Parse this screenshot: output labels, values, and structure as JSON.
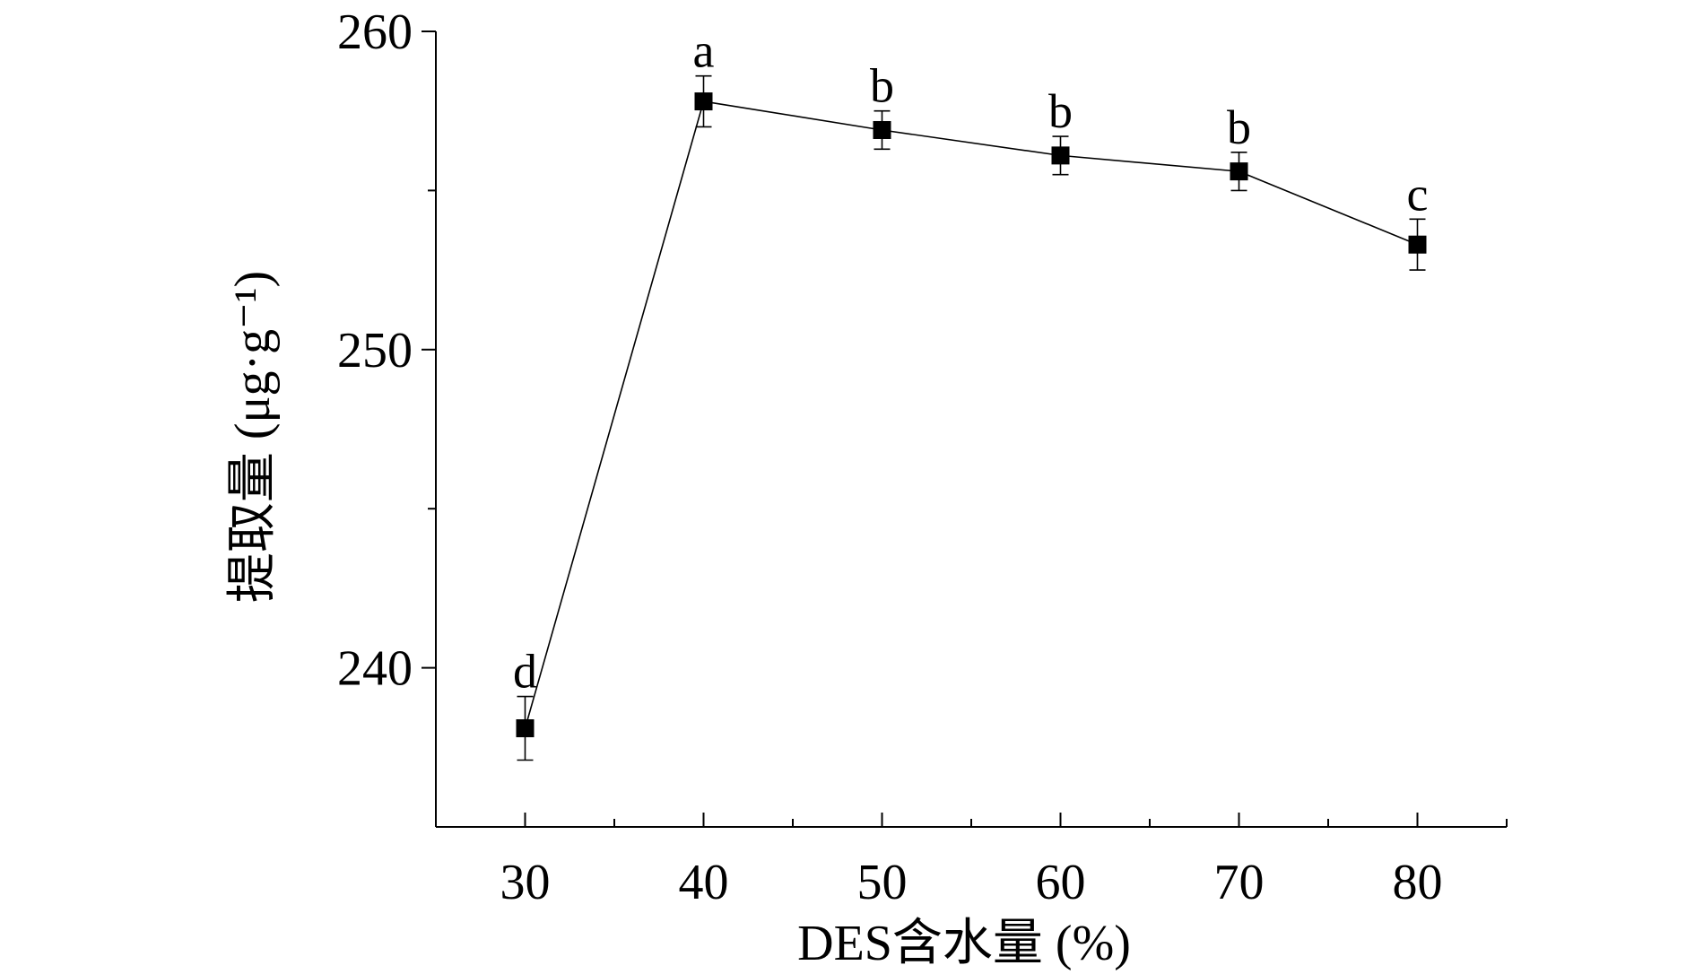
{
  "chart_data": {
    "type": "line",
    "xlabel": "DES含水量 (%)",
    "ylabel": "提取量 (μg·g⁻¹)",
    "xlim": [
      25,
      85
    ],
    "ylim": [
      235,
      260
    ],
    "x_ticks": [
      30,
      40,
      50,
      60,
      70,
      80
    ],
    "y_ticks": [
      240,
      250,
      260
    ],
    "x_minor_ticks": [
      35,
      45,
      55,
      65,
      75,
      85
    ],
    "y_minor_ticks": [
      245,
      255
    ],
    "grid": false,
    "legend": "none",
    "marker": "filled-square",
    "line_color": "#000000",
    "series": [
      {
        "x": [
          30,
          40,
          50,
          60,
          70,
          80
        ],
        "y": [
          238.1,
          257.8,
          256.9,
          256.1,
          255.6,
          253.3
        ],
        "error": [
          1.0,
          0.8,
          0.6,
          0.6,
          0.6,
          0.8
        ],
        "labels": [
          "d",
          "a",
          "b",
          "b",
          "b",
          "c"
        ]
      }
    ]
  }
}
